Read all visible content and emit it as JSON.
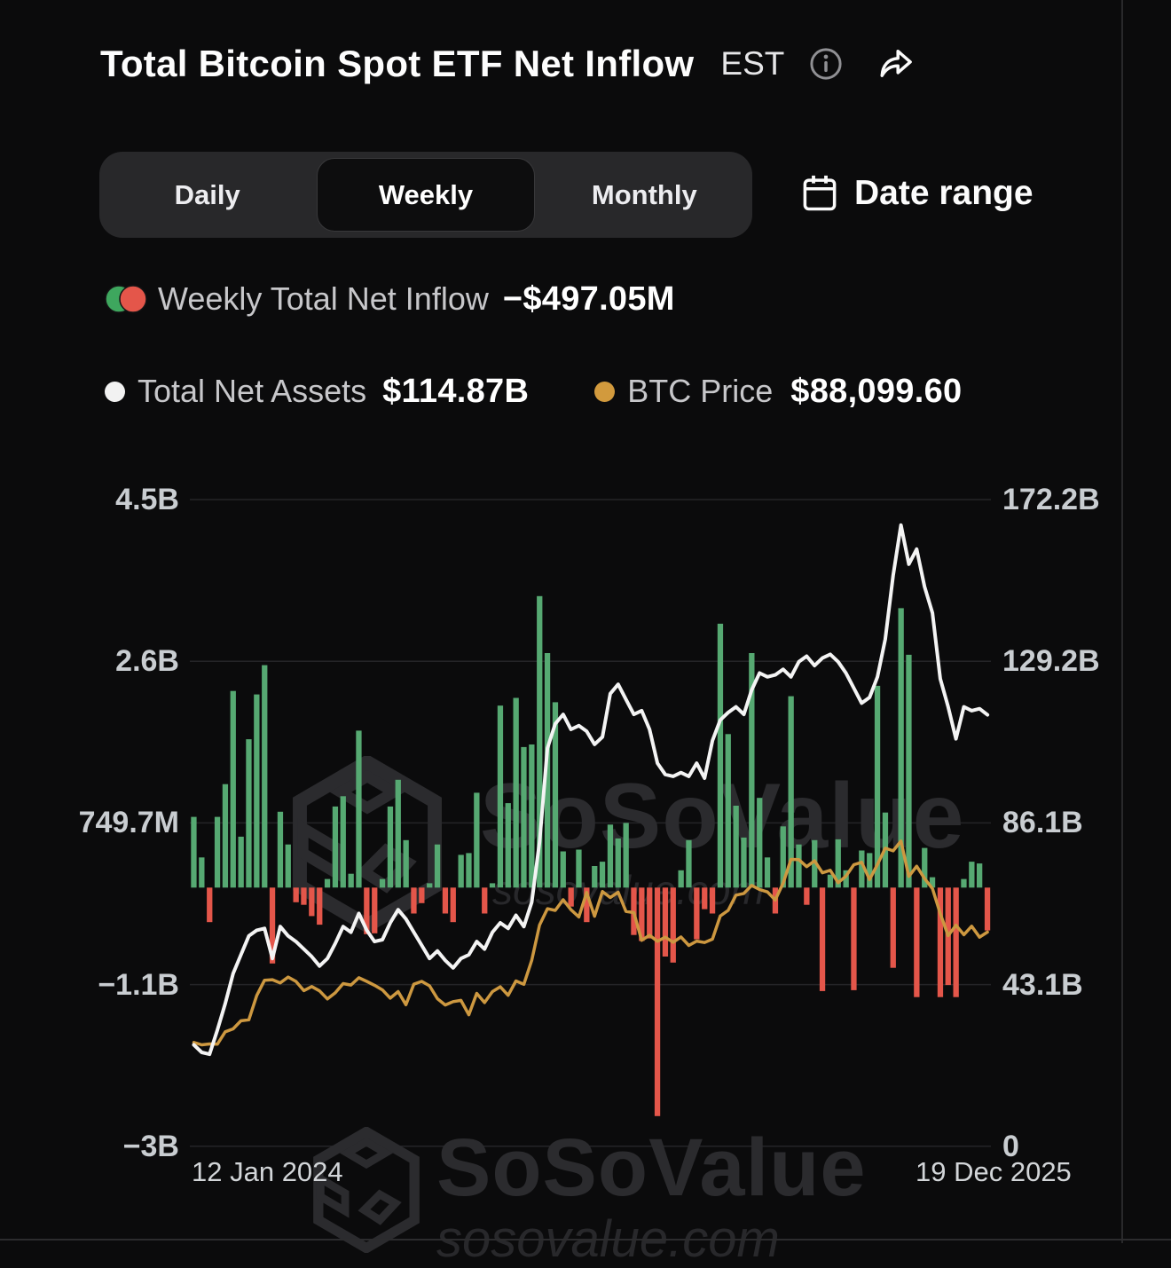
{
  "header": {
    "title": "Total Bitcoin Spot ETF Net Inflow",
    "timezone": "EST"
  },
  "tabs": {
    "items": [
      "Daily",
      "Weekly",
      "Monthly"
    ],
    "selected": "Weekly",
    "date_range_label": "Date range"
  },
  "legend": {
    "net_inflow": {
      "label": "Weekly Total Net Inflow",
      "value": "−$497.05M"
    },
    "total_net_assets": {
      "label": "Total Net Assets",
      "value": "$114.87B"
    },
    "btc_price": {
      "label": "BTC Price",
      "value": "$88,099.60"
    }
  },
  "watermark": {
    "brand": "SoSoValue",
    "domain": "sosovalue.com"
  },
  "colors": {
    "background": "#0b0b0c",
    "bar_positive": "#56a972",
    "bar_negative": "#e4564a",
    "assets_line": "#f4f4f4",
    "btc_line": "#cd9840",
    "legend_green": "#3ea75e",
    "legend_red": "#e4564a",
    "gridline": "#242427"
  },
  "chart_data": {
    "type": "bar",
    "subtype": "combo-bar-2lines",
    "title": "Total Bitcoin Spot ETF Net Inflow",
    "frequency": "weekly",
    "points": 102,
    "x_range": [
      "12 Jan 2024",
      "19 Dec 2025"
    ],
    "grid": "horizontal-faint",
    "y_axis_left": {
      "title": "Weekly Net Inflow (USD)",
      "labels": [
        "4.5B",
        "2.6B",
        "749.7M",
        "−1.1B",
        "−3B"
      ],
      "max": 4.5,
      "min": -3
    },
    "y_axis_right": {
      "title": "Total Net Assets (USD)",
      "labels": [
        "172.2B",
        "129.2B",
        "86.1B",
        "43.1B",
        "0"
      ],
      "max": 172.2,
      "min": 0
    },
    "btc_hidden_axis_max_k": 266,
    "series": [
      {
        "name": "Weekly Total Net Inflow",
        "type": "bar",
        "unit": "$B",
        "values": [
          0.82,
          0.35,
          -0.4,
          0.82,
          1.2,
          2.28,
          0.59,
          1.72,
          2.24,
          2.58,
          -0.88,
          0.88,
          0.5,
          -0.17,
          -0.2,
          -0.33,
          -0.43,
          0.1,
          0.94,
          1.06,
          0.16,
          1.82,
          -0.54,
          -0.53,
          0.1,
          0.94,
          1.25,
          0.55,
          -0.3,
          -0.18,
          0.05,
          0.5,
          -0.3,
          -0.4,
          0.38,
          0.4,
          1.1,
          -0.3,
          0.05,
          2.11,
          0.98,
          2.2,
          1.63,
          1.66,
          3.38,
          2.72,
          2.15,
          0.42,
          -0.22,
          0.44,
          -0.4,
          0.25,
          0.3,
          0.73,
          0.57,
          0.75,
          -0.55,
          -0.62,
          -0.59,
          -2.65,
          -0.8,
          -0.87,
          0.2,
          0.55,
          -0.6,
          -0.25,
          -0.3,
          3.06,
          1.78,
          0.95,
          0.58,
          2.72,
          1.04,
          0.35,
          -0.3,
          0.71,
          2.22,
          0.5,
          -0.2,
          0.55,
          -1.2,
          0.15,
          0.56,
          0.2,
          -1.19,
          0.43,
          0.4,
          2.34,
          0.87,
          -0.93,
          3.24,
          2.7,
          -1.27,
          0.46,
          0.12,
          -1.27,
          -1.13,
          -1.27,
          0.1,
          0.3,
          0.28,
          -0.497
        ]
      },
      {
        "name": "Total Net Assets",
        "type": "line",
        "unit": "$B",
        "values": [
          27,
          25,
          24.5,
          31,
          38,
          46,
          51,
          56,
          57.5,
          58,
          50,
          58.5,
          56,
          54.5,
          52.5,
          50.5,
          48,
          50,
          54,
          58.5,
          57,
          62,
          57.5,
          54.5,
          55,
          59.5,
          63,
          60.5,
          57,
          53.5,
          50,
          52,
          49.5,
          47.5,
          50,
          51,
          54.5,
          52.5,
          57,
          59.5,
          58,
          61.5,
          58.5,
          65,
          81,
          106,
          112.5,
          115,
          111,
          112,
          110.5,
          107,
          109,
          120.5,
          123,
          119,
          115,
          116,
          111,
          102,
          99,
          98.5,
          99.5,
          98.5,
          102,
          98,
          108,
          113.5,
          115.5,
          117,
          115,
          121.5,
          126,
          125,
          125.5,
          127,
          125,
          129,
          130.5,
          128,
          130,
          131,
          129,
          126,
          122,
          118,
          119.5,
          125,
          135,
          152,
          165.4,
          155,
          159,
          149,
          142,
          124.5,
          117,
          108.5,
          117,
          116,
          116.5,
          114.87
        ]
      },
      {
        "name": "BTC Price",
        "type": "line",
        "unit": "$k",
        "values": [
          42.7,
          41.7,
          42.1,
          42.0,
          47.1,
          48.3,
          51.6,
          52.0,
          62.0,
          68.3,
          68.5,
          67.2,
          69.6,
          67.8,
          64.0,
          65.7,
          63.9,
          60.6,
          63.1,
          66.9,
          66.3,
          69.3,
          67.8,
          66.2,
          64.3,
          60.9,
          63.6,
          58.2,
          66.7,
          67.8,
          66.0,
          60.7,
          58.1,
          59.5,
          60.0,
          54.1,
          62.9,
          59.1,
          63.6,
          65.6,
          62.1,
          68.0,
          66.6,
          76.5,
          91.0,
          97.7,
          97.0,
          101.4,
          97.3,
          94.3,
          104.4,
          94.6,
          104.8,
          102.3,
          104.5,
          96.6,
          96.1,
          84.7,
          86.8,
          84.3,
          86.0,
          83.9,
          86.1,
          82.6,
          84.4,
          83.8,
          85.2,
          94.7,
          97.0,
          103.3,
          104.0,
          107.3,
          105.6,
          104.6,
          101.3,
          108.2,
          118.0,
          117.9,
          115.0,
          117.4,
          112.5,
          113.5,
          108.4,
          111.1,
          115.8,
          116.8,
          109.7,
          115.9,
          122.6,
          121.5,
          125.5,
          111.0,
          115.2,
          110.1,
          106.0,
          95.7,
          86.6,
          90.9,
          87.0,
          90.5,
          86.0,
          88.1
        ]
      }
    ]
  }
}
